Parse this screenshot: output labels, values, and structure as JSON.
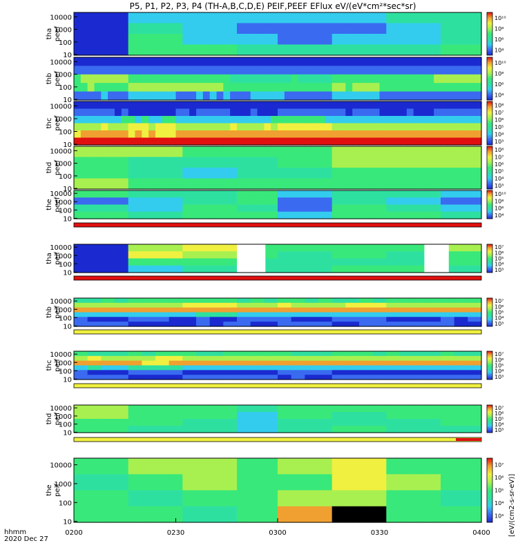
{
  "chart_data": {
    "type": "heatmap",
    "title": "P5, P1, P2, P3, P4 (TH-A,B,C,D,E) PEIF,PEEF EFlux eV/(eV*cm²*sec*sr)",
    "x_axis": {
      "ticks": [
        "0200",
        "0230",
        "0300",
        "0330",
        "0400"
      ],
      "corner_label": "hhmm",
      "date_label": "2020 Dec 27",
      "range": [
        "02:00",
        "04:00"
      ]
    },
    "y_scale": "log",
    "y_ticks": [
      "10",
      "100",
      "1000",
      "10000"
    ],
    "colorbar_label": "[eV/(cm2-s-sr-eV)]",
    "panels": [
      {
        "probe": "tha",
        "species": "peef",
        "label": "tha peef",
        "cbar_ticks": [
          "10⁴",
          "10⁶",
          "10⁸",
          "10¹⁰"
        ],
        "palette": "e_a"
      },
      {
        "probe": "thb",
        "species": "peef",
        "label": "thb peef",
        "cbar_ticks": [
          "10⁴",
          "10⁶",
          "10⁸",
          "10¹⁰"
        ],
        "palette": "e_b"
      },
      {
        "probe": "thc",
        "species": "peef",
        "label": "thc peef",
        "cbar_ticks": [
          "10³",
          "10⁴",
          "10⁵",
          "10⁶",
          "10⁷",
          "10⁸"
        ],
        "palette": "e_c"
      },
      {
        "probe": "thd",
        "species": "peef",
        "label": "thd peef",
        "cbar_ticks": [
          "10³",
          "10⁴",
          "10⁵",
          "10⁶",
          "10⁷",
          "10⁸"
        ],
        "palette": "e_d"
      },
      {
        "probe": "the",
        "species": "peef",
        "label": "the peef",
        "cbar_ticks": [
          "10⁴",
          "10⁶",
          "10⁸",
          "10¹⁰"
        ],
        "palette": "e_e"
      },
      {
        "probe": "tha",
        "species": "peif",
        "label": "tha peif",
        "cbar_ticks": [
          "10³",
          "10⁴",
          "10⁵",
          "10⁶",
          "10⁷"
        ],
        "palette": "i_a"
      },
      {
        "probe": "thb",
        "species": "peif",
        "label": "thb peif",
        "cbar_ticks": [
          "10³",
          "10⁴",
          "10⁵",
          "10⁶",
          "10⁷"
        ],
        "palette": "i_b"
      },
      {
        "probe": "thc",
        "species": "peif",
        "label": "thc peif",
        "cbar_ticks": [
          "10³",
          "10⁴",
          "10⁵",
          "10⁶",
          "10⁷"
        ],
        "palette": "i_c"
      },
      {
        "probe": "thd",
        "species": "peif",
        "label": "thd peif",
        "cbar_ticks": [
          "10³",
          "10⁴",
          "10⁵",
          "10⁶",
          "10⁷"
        ],
        "palette": "i_d"
      },
      {
        "probe": "the",
        "species": "peif",
        "label": "the peif",
        "cbar_ticks": [
          "10³",
          "10⁴",
          "10⁵",
          "10⁶",
          "10⁷"
        ],
        "palette": "i_e"
      }
    ],
    "colors": {
      "dark_blue": "#1a2ad0",
      "blue": "#3a6af0",
      "cyan": "#33ccee",
      "teal": "#2ee0a0",
      "green": "#39e87a",
      "yellow_green": "#a8f050",
      "yellow": "#f0f040",
      "orange": "#f0a030",
      "red": "#e01010",
      "black": "#000000"
    }
  }
}
